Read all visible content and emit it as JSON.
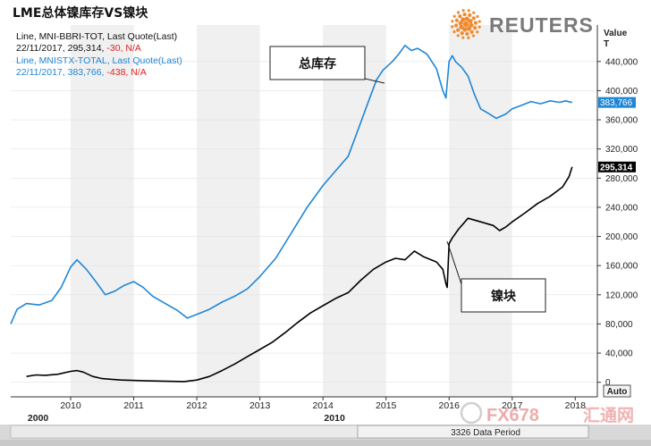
{
  "chart_data": {
    "type": "line",
    "title": "LME总体镍库存VS镍块",
    "legend": [
      {
        "line1": "Line, MNI-BBRI-TOT, Last Quote(Last)",
        "line2_date": "22/11/2017, 295,314, ",
        "line2_change": "-30, N/A",
        "color": "#000000",
        "change_color": "#e02020"
      },
      {
        "line1": "Line, MNISTX-TOTAL, Last Quote(Last)",
        "line2_date": "22/11/2017, 383,766, ",
        "line2_change": "-438, N/A",
        "color": "#1f86d6",
        "change_color": "#e02020"
      }
    ],
    "y_axis": {
      "title_line1": "Value",
      "title_line2": "T",
      "ticks": [
        0,
        40000,
        80000,
        120000,
        160000,
        200000,
        240000,
        280000,
        320000,
        360000,
        400000,
        440000
      ],
      "tick_labels": [
        "0",
        "40,000",
        "80,000",
        "120,000",
        "160,000",
        "200,000",
        "240,000",
        "280,000",
        "320,000",
        "360,000",
        "400,000",
        "440,000"
      ],
      "ylim": [
        -20000,
        490000
      ]
    },
    "x_axis": {
      "ticks": [
        2010,
        2011,
        2012,
        2013,
        2014,
        2015,
        2016,
        2017,
        2018
      ],
      "tick_labels": [
        "2010",
        "2011",
        "2012",
        "2013",
        "2014",
        "2015",
        "2016",
        "2017",
        "2018"
      ],
      "xlim": [
        2009.05,
        2018.35
      ],
      "era_labels": [
        {
          "label": "2000",
          "x": 2009.2
        },
        {
          "label": "2010",
          "x": 2013.9
        }
      ]
    },
    "last_value_badges": [
      {
        "value": 383766,
        "label": "383,766",
        "bg": "#1f86d6",
        "fg": "#ffffff"
      },
      {
        "value": 295314,
        "label": "295,314",
        "bg": "#000000",
        "fg": "#ffffff"
      }
    ],
    "series": [
      {
        "color": "#1f86d6",
        "x": [
          2009.05,
          2009.15,
          2009.3,
          2009.5,
          2009.7,
          2009.85,
          2010.0,
          2010.1,
          2010.25,
          2010.4,
          2010.55,
          2010.7,
          2010.85,
          2011.0,
          2011.15,
          2011.3,
          2011.5,
          2011.7,
          2011.85,
          2012.0,
          2012.2,
          2012.4,
          2012.6,
          2012.8,
          2013.0,
          2013.25,
          2013.5,
          2013.75,
          2014.0,
          2014.2,
          2014.4,
          2014.55,
          2014.7,
          2014.85,
          2014.95,
          2015.1,
          2015.2,
          2015.3,
          2015.4,
          2015.5,
          2015.65,
          2015.8,
          2015.9,
          2015.95,
          2016.0,
          2016.05,
          2016.1,
          2016.2,
          2016.3,
          2016.4,
          2016.5,
          2016.6,
          2016.75,
          2016.9,
          2017.0,
          2017.15,
          2017.3,
          2017.45,
          2017.6,
          2017.75,
          2017.85,
          2017.95
        ],
        "y": [
          80000,
          100000,
          108000,
          106000,
          112000,
          130000,
          158000,
          168000,
          155000,
          138000,
          120000,
          125000,
          133000,
          138000,
          130000,
          118000,
          108000,
          98000,
          88000,
          93000,
          100000,
          110000,
          118000,
          128000,
          145000,
          170000,
          205000,
          240000,
          270000,
          290000,
          310000,
          345000,
          380000,
          415000,
          428000,
          440000,
          450000,
          462000,
          455000,
          458000,
          450000,
          430000,
          400000,
          390000,
          440000,
          448000,
          440000,
          432000,
          420000,
          395000,
          375000,
          370000,
          362000,
          368000,
          375000,
          380000,
          385000,
          382000,
          386000,
          384000,
          386000,
          383766
        ]
      },
      {
        "color": "#000000",
        "x": [
          2009.3,
          2009.45,
          2009.6,
          2009.8,
          2010.0,
          2010.1,
          2010.2,
          2010.35,
          2010.5,
          2010.8,
          2011.2,
          2011.8,
          2012.0,
          2012.2,
          2012.4,
          2012.6,
          2012.8,
          2013.0,
          2013.2,
          2013.4,
          2013.6,
          2013.8,
          2014.0,
          2014.2,
          2014.4,
          2014.6,
          2014.8,
          2015.0,
          2015.15,
          2015.3,
          2015.45,
          2015.6,
          2015.8,
          2015.9,
          2015.95,
          2015.97,
          2016.0,
          2016.05,
          2016.15,
          2016.3,
          2016.5,
          2016.7,
          2016.8,
          2016.9,
          2017.0,
          2017.2,
          2017.4,
          2017.6,
          2017.8,
          2017.9,
          2017.95
        ],
        "y": [
          8000,
          10000,
          9500,
          11000,
          15000,
          16000,
          14000,
          8000,
          5000,
          3000,
          2000,
          1000,
          3000,
          8000,
          16000,
          25000,
          35000,
          45000,
          55000,
          68000,
          82000,
          95000,
          105000,
          115000,
          123000,
          140000,
          155000,
          165000,
          170000,
          168000,
          180000,
          172000,
          165000,
          155000,
          135000,
          130000,
          190000,
          198000,
          210000,
          225000,
          220000,
          215000,
          208000,
          213000,
          220000,
          232000,
          245000,
          255000,
          268000,
          282000,
          295314
        ]
      }
    ],
    "callouts": [
      {
        "label": "总库存"
      },
      {
        "label": "镍块"
      }
    ],
    "buttons": {
      "auto": "Auto",
      "data_period": "3326 Data Period"
    }
  },
  "brand": {
    "reuters": "REUTERS",
    "watermark": "FX678",
    "watermark_cn": "汇通网"
  }
}
